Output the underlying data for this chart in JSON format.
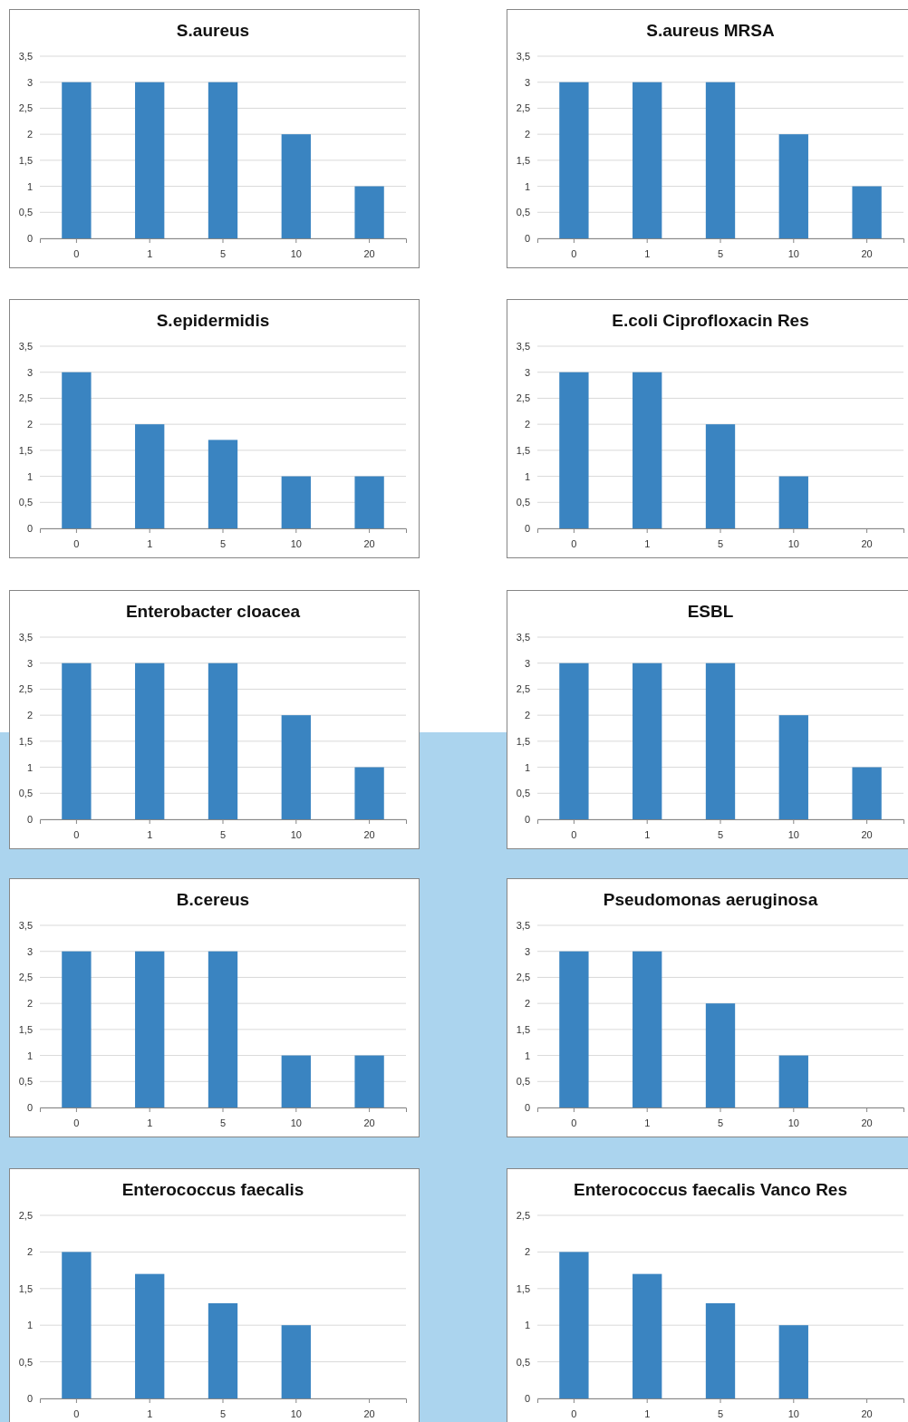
{
  "chart_data": [
    {
      "type": "bar",
      "title": "S.aureus",
      "categories": [
        "0",
        "1",
        "5",
        "10",
        "20"
      ],
      "values": [
        3,
        3,
        3,
        2,
        1
      ],
      "color": "#3a84c1",
      "ylim": [
        0,
        3.5
      ],
      "yticks": [
        0,
        {
          "value": 0.5,
          "label": "0,5"
        },
        1,
        {
          "value": 1.5,
          "label": "1,5"
        },
        2,
        {
          "value": 2.5,
          "label": "2,5"
        },
        3,
        {
          "value": 3.5,
          "label": "3,5"
        }
      ],
      "grid": "y"
    },
    {
      "type": "bar",
      "title": "S.aureus MRSA",
      "categories": [
        "0",
        "1",
        "5",
        "10",
        "20"
      ],
      "values": [
        3,
        3,
        3,
        2,
        1
      ],
      "color": "#3a84c1",
      "ylim": [
        0,
        3.5
      ],
      "yticks": [
        0,
        {
          "value": 0.5,
          "label": "0,5"
        },
        1,
        {
          "value": 1.5,
          "label": "1,5"
        },
        2,
        {
          "value": 2.5,
          "label": "2,5"
        },
        3,
        {
          "value": 3.5,
          "label": "3,5"
        }
      ],
      "grid": "y"
    },
    {
      "type": "bar",
      "title": "S.epidermidis",
      "categories": [
        "0",
        "1",
        "5",
        "10",
        "20"
      ],
      "values": [
        3,
        2,
        1.7,
        1,
        1
      ],
      "color": "#3a84c1",
      "ylim": [
        0,
        3.5
      ],
      "yticks": [
        0,
        {
          "value": 0.5,
          "label": "0,5"
        },
        1,
        {
          "value": 1.5,
          "label": "1,5"
        },
        2,
        {
          "value": 2.5,
          "label": "2,5"
        },
        3,
        {
          "value": 3.5,
          "label": "3,5"
        }
      ],
      "grid": "y"
    },
    {
      "type": "bar",
      "title": "E.coli Ciprofloxacin Res",
      "categories": [
        "0",
        "1",
        "5",
        "10",
        "20"
      ],
      "values": [
        3,
        3,
        2,
        1,
        0
      ],
      "color": "#3a84c1",
      "ylim": [
        0,
        3.5
      ],
      "yticks": [
        0,
        {
          "value": 0.5,
          "label": "0,5"
        },
        1,
        {
          "value": 1.5,
          "label": "1,5"
        },
        2,
        {
          "value": 2.5,
          "label": "2,5"
        },
        3,
        {
          "value": 3.5,
          "label": "3,5"
        }
      ],
      "grid": "y"
    },
    {
      "type": "bar",
      "title": "Enterobacter cloacea",
      "categories": [
        "0",
        "1",
        "5",
        "10",
        "20"
      ],
      "values": [
        3,
        3,
        3,
        2,
        1
      ],
      "color": "#3a84c1",
      "ylim": [
        0,
        3.5
      ],
      "yticks": [
        0,
        {
          "value": 0.5,
          "label": "0,5"
        },
        1,
        {
          "value": 1.5,
          "label": "1,5"
        },
        2,
        {
          "value": 2.5,
          "label": "2,5"
        },
        3,
        {
          "value": 3.5,
          "label": "3,5"
        }
      ],
      "grid": "y"
    },
    {
      "type": "bar",
      "title": "ESBL",
      "categories": [
        "0",
        "1",
        "5",
        "10",
        "20"
      ],
      "values": [
        3,
        3,
        3,
        2,
        1
      ],
      "color": "#3a84c1",
      "ylim": [
        0,
        3.5
      ],
      "yticks": [
        0,
        {
          "value": 0.5,
          "label": "0,5"
        },
        1,
        {
          "value": 1.5,
          "label": "1,5"
        },
        2,
        {
          "value": 2.5,
          "label": "2,5"
        },
        3,
        {
          "value": 3.5,
          "label": "3,5"
        }
      ],
      "grid": "y"
    },
    {
      "type": "bar",
      "title": "B.cereus",
      "categories": [
        "0",
        "1",
        "5",
        "10",
        "20"
      ],
      "values": [
        3,
        3,
        3,
        1,
        1
      ],
      "color": "#3a84c1",
      "ylim": [
        0,
        3.5
      ],
      "yticks": [
        0,
        {
          "value": 0.5,
          "label": "0,5"
        },
        1,
        {
          "value": 1.5,
          "label": "1,5"
        },
        2,
        {
          "value": 2.5,
          "label": "2,5"
        },
        3,
        {
          "value": 3.5,
          "label": "3,5"
        }
      ],
      "grid": "y"
    },
    {
      "type": "bar",
      "title": "Pseudomonas aeruginosa",
      "categories": [
        "0",
        "1",
        "5",
        "10",
        "20"
      ],
      "values": [
        3,
        3,
        2,
        1,
        0
      ],
      "color": "#3a84c1",
      "ylim": [
        0,
        3.5
      ],
      "yticks": [
        0,
        {
          "value": 0.5,
          "label": "0,5"
        },
        1,
        {
          "value": 1.5,
          "label": "1,5"
        },
        2,
        {
          "value": 2.5,
          "label": "2,5"
        },
        3,
        {
          "value": 3.5,
          "label": "3,5"
        }
      ],
      "grid": "y"
    },
    {
      "type": "bar",
      "title": "Enterococcus faecalis",
      "categories": [
        "0",
        "1",
        "5",
        "10",
        "20"
      ],
      "values": [
        2,
        1.7,
        1.3,
        1,
        0
      ],
      "color": "#3a84c1",
      "ylim": [
        0,
        2.5
      ],
      "yticks": [
        0,
        {
          "value": 0.5,
          "label": "0,5"
        },
        1,
        {
          "value": 1.5,
          "label": "1,5"
        },
        2,
        {
          "value": 2.5,
          "label": "2,5"
        }
      ],
      "grid": "y"
    },
    {
      "type": "bar",
      "title": "Enterococcus faecalis Vanco Res",
      "categories": [
        "0",
        "1",
        "5",
        "10",
        "20"
      ],
      "values": [
        2,
        1.7,
        1.3,
        1,
        0
      ],
      "color": "#3a84c1",
      "ylim": [
        0,
        2.5
      ],
      "yticks": [
        0,
        {
          "value": 0.5,
          "label": "0,5"
        },
        1,
        {
          "value": 1.5,
          "label": "1,5"
        },
        2,
        {
          "value": 2.5,
          "label": "2,5"
        }
      ],
      "grid": "y"
    }
  ]
}
